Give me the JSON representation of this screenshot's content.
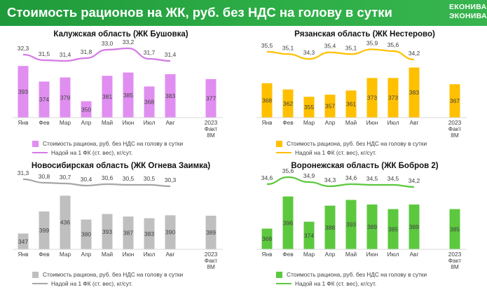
{
  "header": {
    "title": "Стоимость рационов на ЖК, руб. без НДС на голову в сутки",
    "logo_line1": "ЕКОНИВА",
    "logo_line2": "ЭКОНИВА"
  },
  "chart_data": [
    {
      "type": "bar",
      "title": "Калужская область (ЖК Бушовка)",
      "categories": [
        "Янв",
        "Фев",
        "Мар",
        "Апр",
        "Май",
        "Июн",
        "Июл",
        "Авг"
      ],
      "extra_category": [
        "2023",
        "Факт",
        "8М"
      ],
      "series": [
        {
          "name": "Стоимость рациона, руб. без НДС на голову в сутки",
          "kind": "bar",
          "values": [
            393,
            374,
            379,
            350,
            381,
            385,
            368,
            383
          ],
          "extra_value": 377
        },
        {
          "name": "Надой на 1 ФК (ст. вес), кг/сут.",
          "kind": "line",
          "values": [
            32.3,
            31.5,
            31.4,
            31.8,
            33.0,
            33.2,
            31.7,
            31.4
          ],
          "labels": [
            "32,3",
            "31,5",
            "31,4",
            "31,8",
            "33,0",
            "33,2",
            "31,7",
            "31,4"
          ]
        }
      ],
      "bar_color": "#e08ef0",
      "line_color": "#d47ae6",
      "bar_range": [
        330,
        400
      ],
      "line_range": [
        28,
        34
      ]
    },
    {
      "type": "bar",
      "title": "Рязанская область (ЖК Нестерово)",
      "categories": [
        "Янв",
        "Фев",
        "Мар",
        "Апр",
        "Май",
        "Июн",
        "Июл",
        "Авг"
      ],
      "extra_category": [
        "2023",
        "Факт",
        "8М"
      ],
      "series": [
        {
          "name": "Стоимость рациона, руб. без НДС на голову в сутки",
          "kind": "bar",
          "values": [
            368,
            362,
            355,
            357,
            361,
            373,
            373,
            383
          ],
          "extra_value": 367
        },
        {
          "name": "Надой на 1 ФК (ст. вес), кг/сут.",
          "kind": "line",
          "values": [
            35.5,
            35.1,
            34.3,
            35.4,
            35.1,
            35.9,
            35.6,
            34.2
          ],
          "labels": [
            "35,5",
            "35,1",
            "34,3",
            "35,4",
            "35,1",
            "35,9",
            "35,6",
            "34,2"
          ]
        }
      ],
      "bar_color": "#ffc000",
      "line_color": "#ffc000",
      "bar_range": [
        335,
        390
      ],
      "line_range": [
        30,
        37
      ]
    },
    {
      "type": "bar",
      "title": "Новосибирская область (ЖК Огнева Заимка)",
      "categories": [
        "Янв",
        "Фев",
        "Мар",
        "Апр",
        "Май",
        "Июн",
        "Июл",
        "Авг"
      ],
      "extra_category": [
        "2023",
        "Факт",
        "8М"
      ],
      "series": [
        {
          "name": "Стоимость рациона, руб. без НДС на голову в сутки",
          "kind": "bar",
          "values": [
            347,
            399,
            436,
            380,
            393,
            387,
            383,
            390
          ],
          "extra_value": 389
        },
        {
          "name": "Надой на 1 ФК (ст. вес), кг/сут.",
          "kind": "line",
          "values": [
            31.3,
            30.8,
            30.7,
            30.4,
            30.6,
            30.5,
            30.5,
            30.3
          ],
          "labels": [
            "31,3",
            "30,8",
            "30,7",
            "30,4",
            "30,6",
            "30,5",
            "30,5",
            "30,3"
          ]
        }
      ],
      "bar_color": "#bfbfbf",
      "line_color": "#a6a6a6",
      "bar_range": [
        310,
        445
      ],
      "line_range": [
        26,
        32
      ]
    },
    {
      "type": "bar",
      "title": "Воронежская область (ЖК Бобров 2)",
      "categories": [
        "Янв",
        "Фев",
        "Мар",
        "Апр",
        "Май",
        "Июн",
        "Июл",
        "Авг"
      ],
      "extra_category": [
        "2023",
        "Факт",
        "8М"
      ],
      "series": [
        {
          "name": "Стоимость рациона, руб. без НДС на голову в сутки",
          "kind": "bar",
          "values": [
            368,
            396,
            374,
            388,
            393,
            389,
            385,
            389
          ],
          "extra_value": 385
        },
        {
          "name": "Надой на 1 ФК (ст. вес), кг/сут.",
          "kind": "line",
          "values": [
            34.6,
            35.6,
            34.9,
            34.3,
            34.6,
            34.5,
            34.5,
            34.2
          ],
          "labels": [
            "34,6",
            "35,6",
            "34,9",
            "34,3",
            "34,6",
            "34,5",
            "34,5",
            "34,2"
          ]
        }
      ],
      "bar_color": "#5cc83e",
      "line_color": "#5cc83e",
      "bar_range": [
        350,
        400
      ],
      "line_range": [
        30,
        36
      ]
    }
  ]
}
